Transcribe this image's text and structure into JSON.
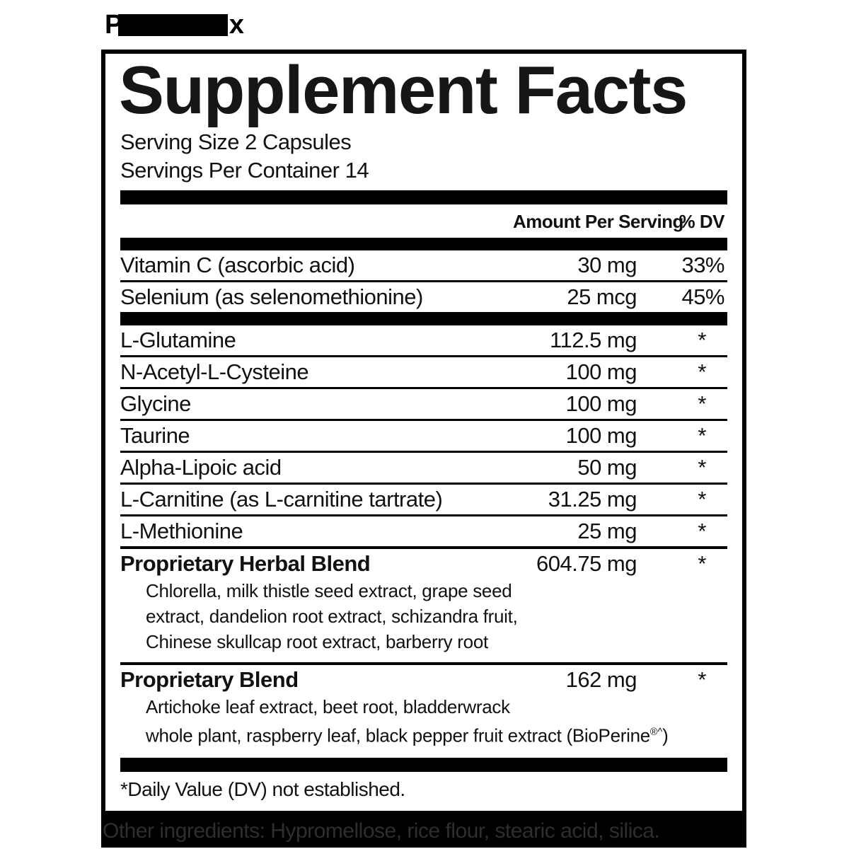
{
  "product_name": {
    "visible_prefix": "P",
    "visible_suffix": "x"
  },
  "panel": {
    "title": "Supplement Facts",
    "serving_size": "Serving Size 2 Capsules",
    "servings_per_container": "Servings Per Container 14",
    "header": {
      "amount": "Amount Per Serving",
      "dv": "% DV"
    },
    "sections": [
      {
        "rows": [
          {
            "name": "Vitamin C (ascorbic acid)",
            "amount": "30 mg",
            "dv": "33%",
            "bold": false
          },
          {
            "name": "Selenium (as selenomethionine)",
            "amount": "25 mcg",
            "dv": "45%",
            "bold": false
          }
        ]
      },
      {
        "rows": [
          {
            "name": "L-Glutamine",
            "amount": "112.5 mg",
            "dv": "*",
            "bold": false
          },
          {
            "name": "N-Acetyl-L-Cysteine",
            "amount": "100 mg",
            "dv": "*",
            "bold": false
          },
          {
            "name": "Glycine",
            "amount": "100 mg",
            "dv": "*",
            "bold": false
          },
          {
            "name": "Taurine",
            "amount": "100 mg",
            "dv": "*",
            "bold": false
          },
          {
            "name": "Alpha-Lipoic acid",
            "amount": "50 mg",
            "dv": "*",
            "bold": false
          },
          {
            "name": "L-Carnitine (as L-carnitine tartrate)",
            "amount": "31.25 mg",
            "dv": "*",
            "bold": false
          },
          {
            "name": "L-Methionine",
            "amount": "25 mg",
            "dv": "*",
            "bold": false
          },
          {
            "name": "Proprietary Herbal Blend",
            "amount": "604.75 mg",
            "dv": "*",
            "bold": true,
            "description_lines": [
              "Chlorella, milk thistle seed extract, grape seed",
              "extract, dandelion root extract, schizandra fruit,",
              "Chinese skullcap root extract, barberry root"
            ]
          },
          {
            "name": "Proprietary Blend",
            "amount": "162 mg",
            "dv": "*",
            "bold": true,
            "description_lines": [
              "Artichoke leaf extract, beet root, bladderwrack",
              "whole plant, raspberry leaf, black pepper fruit extract (BioPerine®^)"
            ]
          }
        ]
      }
    ],
    "footnote": "*Daily Value (DV) not established."
  },
  "other_ingredients": "Other ingredients: Hypromellose, rice flour, stearic acid, silica.",
  "colors": {
    "ink": "#111111",
    "bar_black": "#000000",
    "strip_background": "#000000",
    "strip_text": "#2e2e2e"
  }
}
